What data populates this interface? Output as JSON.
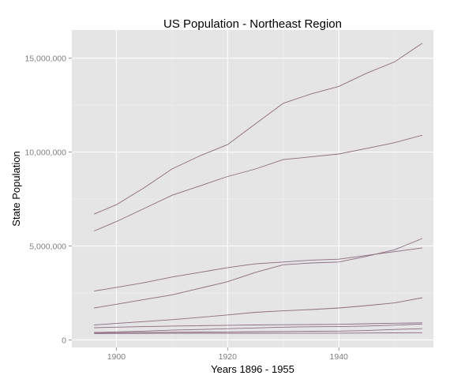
{
  "chart_data": {
    "type": "line",
    "title": "US Population - Northeast Region",
    "xlabel": "Years 1896 - 1955",
    "ylabel": "State Population",
    "xlim": [
      1892,
      1957
    ],
    "ylim": [
      -400000,
      16500000
    ],
    "x_ticks": [
      1900,
      1920,
      1940
    ],
    "y_ticks": [
      0,
      5000000,
      10000000,
      15000000
    ],
    "y_tick_labels": [
      "0",
      "5,000,000",
      "10,000,000",
      "15,000,000"
    ],
    "x_minor_ticks": [
      1910,
      1930,
      1950
    ],
    "y_minor_ticks": [
      2500000,
      7500000,
      12500000
    ],
    "grid": true,
    "panel_color": "#e5e5e5",
    "line_color": "#8c6b80",
    "series": [
      {
        "x": [
          1896,
          1900,
          1905,
          1910,
          1915,
          1920,
          1925,
          1930,
          1935,
          1940,
          1945,
          1950,
          1955
        ],
        "values": [
          6700000,
          7200000,
          8100000,
          9100000,
          9800000,
          10400000,
          11500000,
          12600000,
          13100000,
          13500000,
          14200000,
          14800000,
          15800000
        ]
      },
      {
        "x": [
          1896,
          1900,
          1905,
          1910,
          1915,
          1920,
          1925,
          1930,
          1935,
          1940,
          1945,
          1950,
          1955
        ],
        "values": [
          5800000,
          6300000,
          7000000,
          7700000,
          8200000,
          8700000,
          9100000,
          9600000,
          9750000,
          9900000,
          10200000,
          10500000,
          10900000
        ]
      },
      {
        "x": [
          1896,
          1900,
          1905,
          1910,
          1915,
          1920,
          1925,
          1930,
          1935,
          1940,
          1945,
          1950,
          1955
        ],
        "values": [
          2600000,
          2800000,
          3050000,
          3350000,
          3600000,
          3850000,
          4050000,
          4150000,
          4250000,
          4300000,
          4500000,
          4700000,
          4900000
        ]
      },
      {
        "x": [
          1896,
          1900,
          1905,
          1910,
          1915,
          1920,
          1925,
          1930,
          1935,
          1940,
          1945,
          1950,
          1955
        ],
        "values": [
          1700000,
          1900000,
          2150000,
          2400000,
          2750000,
          3100000,
          3600000,
          4000000,
          4100000,
          4150000,
          4450000,
          4800000,
          5400000
        ]
      },
      {
        "x": [
          1896,
          1900,
          1905,
          1910,
          1915,
          1920,
          1925,
          1930,
          1935,
          1940,
          1945,
          1950,
          1955
        ],
        "values": [
          800000,
          880000,
          980000,
          1080000,
          1200000,
          1330000,
          1470000,
          1550000,
          1620000,
          1700000,
          1830000,
          1970000,
          2250000
        ]
      },
      {
        "x": [
          1896,
          1900,
          1905,
          1910,
          1915,
          1920,
          1925,
          1930,
          1935,
          1940,
          1945,
          1950,
          1955
        ],
        "values": [
          650000,
          680000,
          710000,
          740000,
          760000,
          780000,
          800000,
          810000,
          820000,
          830000,
          860000,
          890000,
          910000
        ]
      },
      {
        "x": [
          1896,
          1900,
          1905,
          1910,
          1915,
          1920,
          1925,
          1930,
          1935,
          1940,
          1945,
          1950,
          1955
        ],
        "values": [
          400000,
          430000,
          470000,
          520000,
          560000,
          600000,
          640000,
          680000,
          700000,
          710000,
          740000,
          790000,
          850000
        ]
      },
      {
        "x": [
          1896,
          1900,
          1905,
          1910,
          1915,
          1920,
          1925,
          1930,
          1935,
          1940,
          1945,
          1950,
          1955
        ],
        "values": [
          380000,
          390000,
          400000,
          410000,
          420000,
          430000,
          440000,
          450000,
          460000,
          470000,
          500000,
          560000,
          600000
        ]
      },
      {
        "x": [
          1896,
          1900,
          1905,
          1910,
          1915,
          1920,
          1925,
          1930,
          1935,
          1940,
          1945,
          1950,
          1955
        ],
        "values": [
          340000,
          345000,
          350000,
          355000,
          355000,
          355000,
          358000,
          360000,
          362000,
          363000,
          370000,
          378000,
          385000
        ]
      }
    ]
  }
}
